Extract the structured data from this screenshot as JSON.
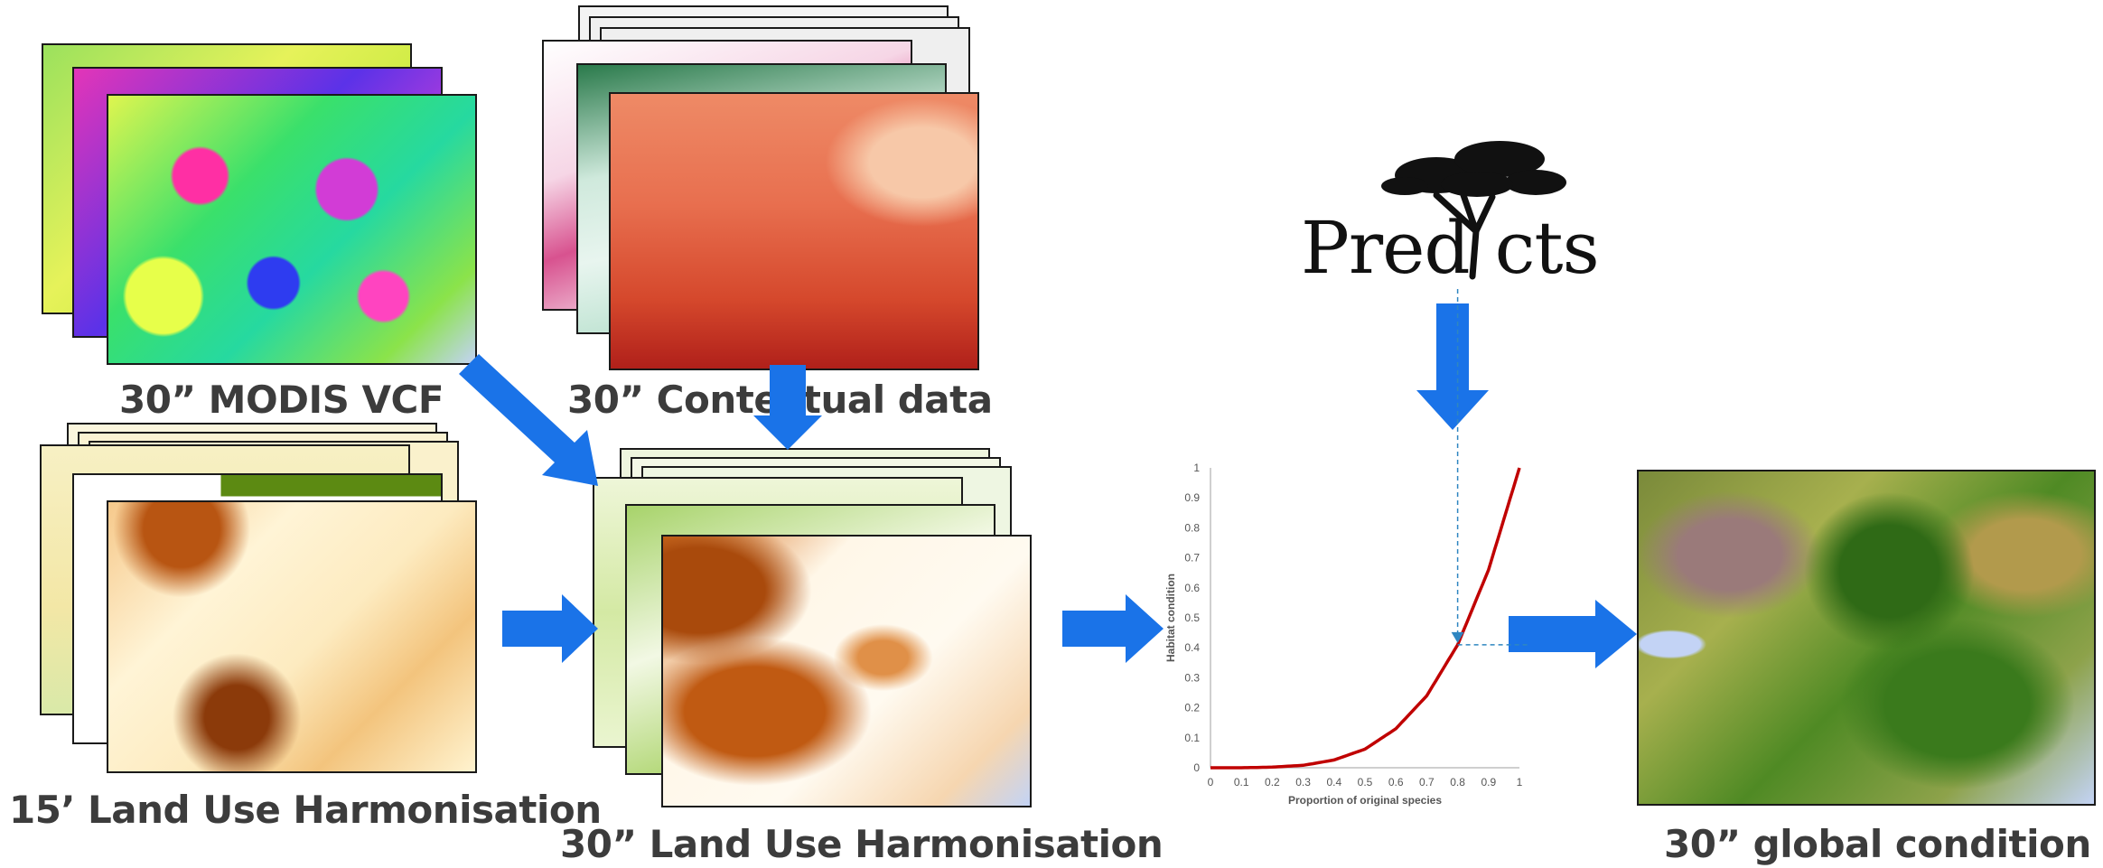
{
  "captions": {
    "modis": "30” MODIS VCF",
    "contextual": "30” Contextual data",
    "luh15": "15’ Land Use Harmonisation",
    "luh30": "30” Land Use Harmonisation",
    "global": "30” global condition"
  },
  "logo": {
    "text_before": "Pred",
    "text_after": "cts",
    "icon": "tree-icon"
  },
  "chart_data": {
    "type": "line",
    "title": "",
    "xlabel": "Proportion of original species",
    "ylabel": "Habitat condition",
    "xlim": [
      0,
      1
    ],
    "ylim": [
      0,
      1
    ],
    "x_ticks": [
      "0",
      "0.1",
      "0.2",
      "0.3",
      "0.4",
      "0.5",
      "0.6",
      "0.7",
      "0.8",
      "0.9",
      "1"
    ],
    "y_ticks": [
      "0",
      "0.1",
      "0.2",
      "0.3",
      "0.4",
      "0.5",
      "0.6",
      "0.7",
      "0.8",
      "0.9",
      "1"
    ],
    "series": [
      {
        "color": "#c00000",
        "x": [
          0,
          0.1,
          0.2,
          0.3,
          0.4,
          0.5,
          0.6,
          0.7,
          0.8,
          0.9,
          1
        ],
        "y": [
          0,
          0,
          0.002,
          0.008,
          0.026,
          0.062,
          0.13,
          0.24,
          0.41,
          0.66,
          1
        ]
      }
    ],
    "marker": {
      "x": 0.8,
      "y": 0.41
    }
  },
  "colors": {
    "arrow": "#1a73e8",
    "curve": "#c00000",
    "dashed": "#2e86c1",
    "sea": "#c3d3f5"
  }
}
